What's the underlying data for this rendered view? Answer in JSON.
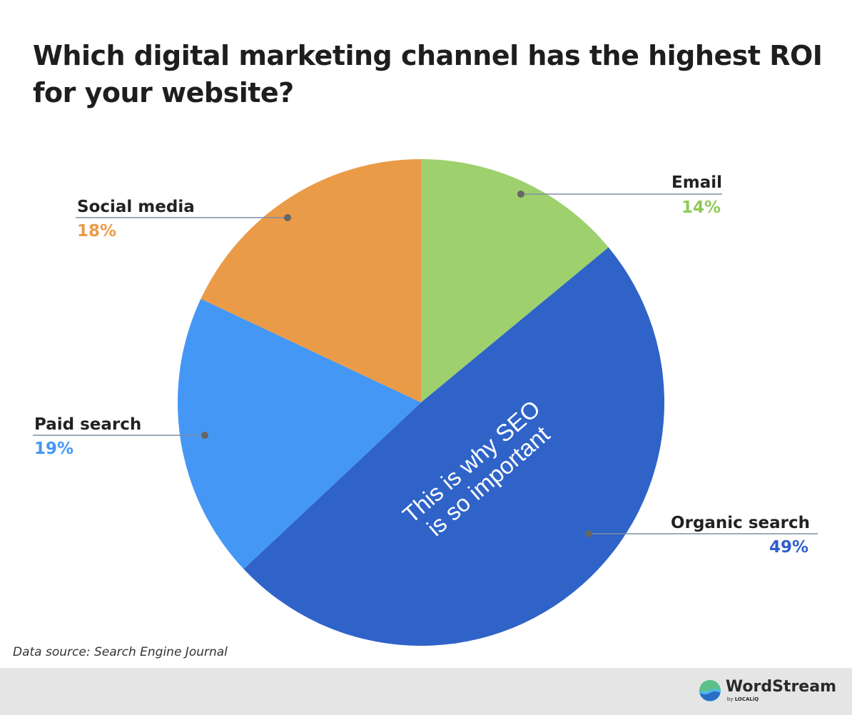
{
  "chart_data": {
    "type": "pie",
    "title_lines": [
      "Which digital marketing channel has the highest ROI",
      "for your website?"
    ],
    "categories": [
      "Email",
      "Organic search",
      "Paid search",
      "Social media"
    ],
    "values": [
      14,
      49,
      19,
      18
    ],
    "value_labels": [
      "14%",
      "49%",
      "19%",
      "18%"
    ],
    "colors": [
      "#9ed06e",
      "#2f63c8",
      "#4497f5",
      "#ea9b48"
    ],
    "annotation_lines": [
      "This is why SEO",
      "is so important"
    ],
    "start_angle_deg": 0,
    "direction": "clockwise"
  },
  "source": "Data source: Search Engine Journal",
  "brand": {
    "name": "WordStream",
    "by_prefix": "by",
    "by_name": "LOCALiQ"
  }
}
